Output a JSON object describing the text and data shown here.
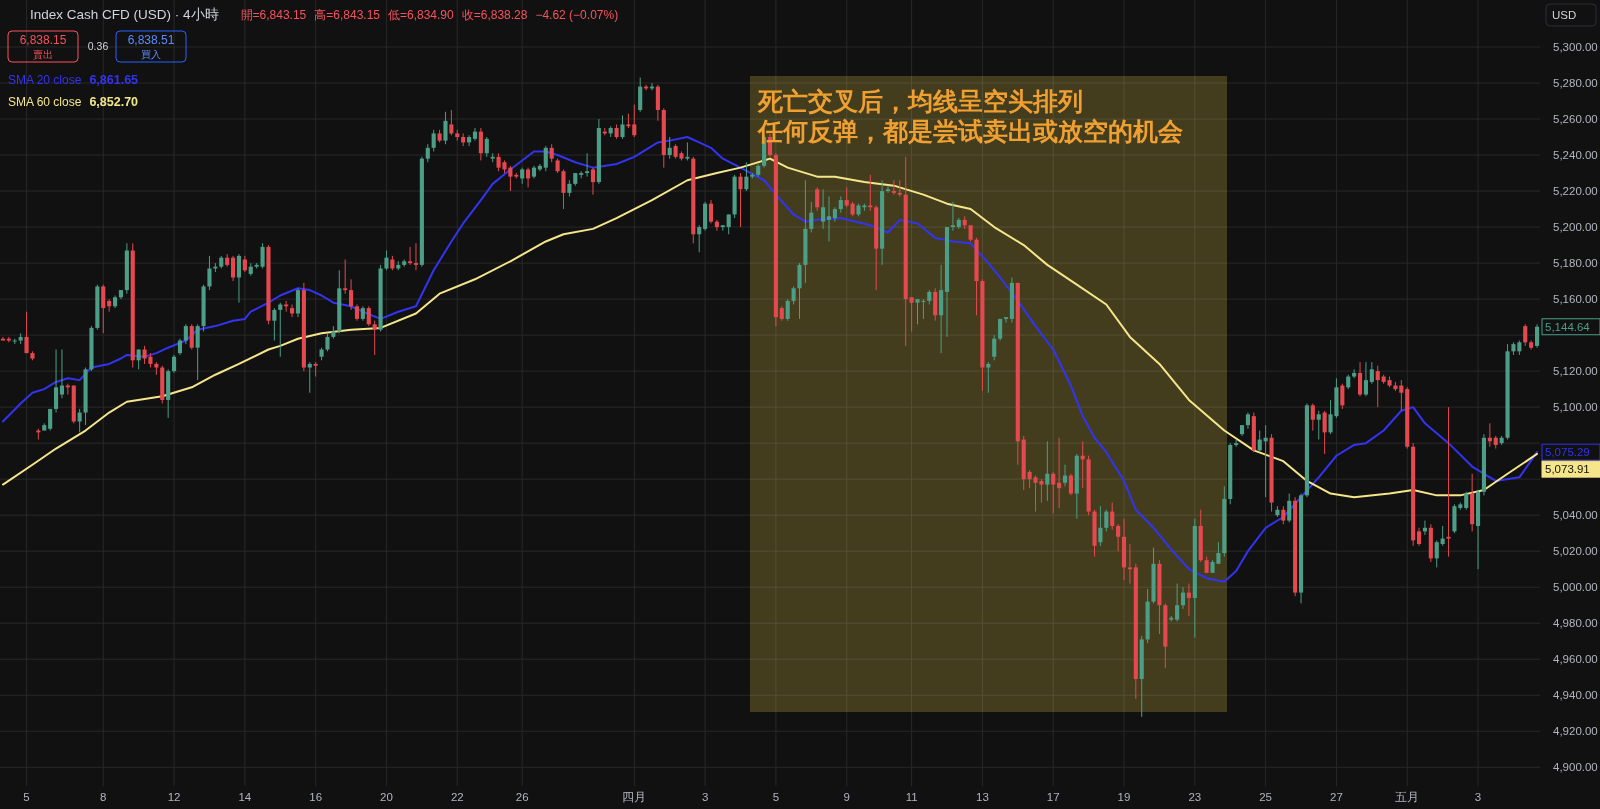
{
  "chart_data": {
    "type": "candlestick",
    "title": "Index Cash CFD (USD) · 4小時",
    "categories": [
      null,
      null,
      null,
      null,
      "5",
      null,
      null,
      null,
      null,
      null,
      null,
      null,
      null,
      null,
      null,
      null,
      null,
      "8",
      null,
      null,
      null,
      null,
      null,
      null,
      null,
      null,
      null,
      null,
      null,
      "12",
      null,
      null,
      null,
      null,
      null,
      null,
      null,
      null,
      null,
      null,
      null,
      "14",
      null,
      null,
      null,
      null,
      null,
      null,
      null,
      null,
      null,
      null,
      null,
      "16",
      null,
      null,
      null,
      null,
      null,
      null,
      null,
      null,
      null,
      null,
      null,
      "20",
      null,
      null,
      null,
      null,
      null,
      null,
      null,
      null,
      null,
      null,
      null,
      "22",
      null,
      null,
      null,
      null,
      null,
      null,
      null,
      null,
      null,
      null,
      "26",
      null,
      null,
      null,
      null,
      null,
      null,
      null,
      null,
      null,
      null,
      null,
      null,
      null,
      null,
      null,
      null,
      null,
      null,
      "四月",
      null,
      null,
      null,
      null,
      null,
      null,
      null,
      null,
      null,
      null,
      null,
      "3",
      null,
      null,
      null,
      null,
      null,
      null,
      null,
      null,
      null,
      null,
      null,
      "5",
      null,
      null,
      null,
      null,
      null,
      null,
      null,
      null,
      null,
      null,
      null,
      "9",
      null,
      null,
      null,
      null,
      null,
      null,
      null,
      null,
      null,
      null,
      "11",
      null,
      null,
      null,
      null,
      null,
      null,
      null,
      null,
      null,
      null,
      null,
      "13",
      null,
      null,
      null,
      null,
      null,
      null,
      null,
      null,
      null,
      null,
      null,
      "17",
      null,
      null,
      null,
      null,
      null,
      null,
      null,
      null,
      null,
      null,
      null,
      "19",
      null,
      null,
      null,
      null,
      null,
      null,
      null,
      null,
      null,
      null,
      null,
      "23",
      null,
      null,
      null,
      null,
      null,
      null,
      null,
      null,
      null,
      null,
      null,
      "25",
      null,
      null,
      null,
      null,
      null,
      null,
      null,
      null,
      null,
      null,
      null,
      "27",
      null,
      null,
      null,
      null,
      null,
      null,
      null,
      null,
      null,
      null,
      null,
      "五月",
      null,
      null,
      null,
      null,
      null,
      null,
      null,
      null,
      null,
      null,
      null,
      "3",
      null,
      null,
      null,
      null,
      null,
      null,
      null,
      null,
      null,
      null
    ],
    "ohlc": [
      [
        5138,
        5139,
        5137,
        5137
      ],
      [
        5138,
        5139,
        5136,
        5137
      ],
      [
        5137,
        5138,
        5135,
        5137
      ],
      [
        5137,
        5141,
        5135,
        5139
      ],
      [
        5139,
        5153,
        5130,
        5130
      ],
      [
        5130,
        5131,
        5126,
        5127
      ],
      [
        5087,
        5088,
        5082,
        5086
      ],
      [
        5087,
        5091,
        5087,
        5090
      ],
      [
        5088,
        5099,
        5087,
        5099
      ],
      [
        5099,
        5132,
        5097,
        5111
      ],
      [
        5107,
        5132,
        5105,
        5112
      ],
      [
        5112,
        5113,
        5107,
        5111
      ],
      [
        5112,
        5112,
        5091,
        5092
      ],
      [
        5092,
        5099,
        5086,
        5097
      ],
      [
        5097,
        5122,
        5090,
        5121
      ],
      [
        5121,
        5145,
        5120,
        5144
      ],
      [
        5144,
        5168,
        5143,
        5167
      ],
      [
        5167,
        5168,
        5141,
        5155
      ],
      [
        5159,
        5160,
        5153,
        5156
      ],
      [
        5156,
        5162,
        5155,
        5161
      ],
      [
        5161,
        5165,
        5160,
        5165
      ],
      [
        5165,
        5191,
        5163,
        5187
      ],
      [
        5187,
        5191,
        5122,
        5126
      ],
      [
        5126,
        5132,
        5121,
        5132
      ],
      [
        5132,
        5134,
        5124,
        5127
      ],
      [
        5128,
        5130,
        5122,
        5124
      ],
      [
        5124,
        5125,
        5118,
        5122
      ],
      [
        5122,
        5123,
        5102,
        5104
      ],
      [
        5104,
        5121,
        5094,
        5120
      ],
      [
        5120,
        5129,
        5119,
        5128
      ],
      [
        5130,
        5138,
        5129,
        5137
      ],
      [
        5137,
        5146,
        5135,
        5145
      ],
      [
        5145,
        5146,
        5132,
        5133
      ],
      [
        5133,
        5146,
        5115,
        5145
      ],
      [
        5145,
        5168,
        5142,
        5167
      ],
      [
        5167,
        5184,
        5165,
        5177
      ],
      [
        5177,
        5180,
        5175,
        5178
      ],
      [
        5178,
        5184,
        5177,
        5183
      ],
      [
        5183,
        5185,
        5178,
        5179
      ],
      [
        5183,
        5184,
        5170,
        5172
      ],
      [
        5172,
        5185,
        5158,
        5184
      ],
      [
        5182,
        5184,
        5175,
        5176
      ],
      [
        5174,
        5180,
        5173,
        5178
      ],
      [
        5178,
        5180,
        5177,
        5179
      ],
      [
        5178,
        5191,
        5177,
        5189
      ],
      [
        5189,
        5190,
        5146,
        5148
      ],
      [
        5148,
        5155,
        5137,
        5154
      ],
      [
        5154,
        5158,
        5128,
        5157
      ],
      [
        5157,
        5159,
        5153,
        5156
      ],
      [
        5155,
        5157,
        5150,
        5152
      ],
      [
        5152,
        5166,
        5150,
        5165
      ],
      [
        5165,
        5169,
        5120,
        5122
      ],
      [
        5122,
        5125,
        5108,
        5124
      ],
      [
        5124,
        5125,
        5117,
        5123
      ],
      [
        5128,
        5133,
        5126,
        5132
      ],
      [
        5132,
        5141,
        5131,
        5139
      ],
      [
        5139,
        5145,
        5138,
        5142
      ],
      [
        5142,
        5176,
        5141,
        5166
      ],
      [
        5166,
        5182,
        5163,
        5165
      ],
      [
        5165,
        5171,
        5154,
        5156
      ],
      [
        5156,
        5157,
        5148,
        5149
      ],
      [
        5149,
        5156,
        5148,
        5155
      ],
      [
        5155,
        5156,
        5145,
        5146
      ],
      [
        5146,
        5148,
        5129,
        5143
      ],
      [
        5143,
        5179,
        5142,
        5177
      ],
      [
        5177,
        5187,
        5176,
        5183
      ],
      [
        5182,
        5184,
        5176,
        5177
      ],
      [
        5177,
        5181,
        5176,
        5179
      ],
      [
        5179,
        5182,
        5178,
        5181
      ],
      [
        5181,
        5189,
        5179,
        5180
      ],
      [
        5180,
        5191,
        5176,
        5179
      ],
      [
        5179,
        5239,
        5178,
        5238
      ],
      [
        5238,
        5246,
        5236,
        5244
      ],
      [
        5244,
        5254,
        5242,
        5252
      ],
      [
        5252,
        5254,
        5247,
        5248
      ],
      [
        5248,
        5264,
        5246,
        5259
      ],
      [
        5257,
        5265,
        5251,
        5252
      ],
      [
        5252,
        5254,
        5248,
        5250
      ],
      [
        5250,
        5252,
        5245,
        5247
      ],
      [
        5247,
        5251,
        5245,
        5250
      ],
      [
        5249,
        5255,
        5248,
        5253
      ],
      [
        5253,
        5255,
        5237,
        5241
      ],
      [
        5241,
        5250,
        5239,
        5249
      ],
      [
        5238,
        5241,
        5236,
        5239
      ],
      [
        5239,
        5241,
        5231,
        5233
      ],
      [
        5236,
        5237,
        5230,
        5232
      ],
      [
        5233,
        5234,
        5220,
        5228
      ],
      [
        5229,
        5230,
        5227,
        5228
      ],
      [
        5227,
        5233,
        5224,
        5232
      ],
      [
        5232,
        5233,
        5222,
        5227
      ],
      [
        5228,
        5234,
        5227,
        5233
      ],
      [
        5232,
        5235,
        5231,
        5234
      ],
      [
        5233,
        5245,
        5231,
        5244
      ],
      [
        5244,
        5246,
        5236,
        5238
      ],
      [
        5237,
        5238,
        5230,
        5231
      ],
      [
        5231,
        5232,
        5210,
        5219
      ],
      [
        5219,
        5226,
        5217,
        5224
      ],
      [
        5224,
        5230,
        5223,
        5230
      ],
      [
        5229,
        5231,
        5227,
        5230
      ],
      [
        5230,
        5241,
        5228,
        5231
      ],
      [
        5232,
        5233,
        5218,
        5225
      ],
      [
        5225,
        5260,
        5224,
        5255
      ],
      [
        5253,
        5255,
        5251,
        5252
      ],
      [
        5252,
        5256,
        5250,
        5255
      ],
      [
        5255,
        5257,
        5249,
        5250
      ],
      [
        5250,
        5262,
        5249,
        5257
      ],
      [
        5257,
        5263,
        5255,
        5256
      ],
      [
        5257,
        5268,
        5250,
        5251
      ],
      [
        5265,
        5283,
        5264,
        5278
      ],
      [
        5278,
        5279,
        5276,
        5277
      ],
      [
        5277,
        5280,
        5276,
        5278
      ],
      [
        5278,
        5279,
        5259,
        5265
      ],
      [
        5265,
        5266,
        5233,
        5240
      ],
      [
        5240,
        5250,
        5238,
        5244
      ],
      [
        5245,
        5246,
        5238,
        5239
      ],
      [
        5241,
        5242,
        5237,
        5238
      ],
      [
        5238,
        5247,
        5237,
        5239
      ],
      [
        5238,
        5239,
        5191,
        5196
      ],
      [
        5196,
        5201,
        5186,
        5200
      ],
      [
        5199,
        5214,
        5198,
        5213
      ],
      [
        5213,
        5215,
        5202,
        5203
      ],
      [
        5203,
        5204,
        5198,
        5200
      ],
      [
        5200,
        5201,
        5198,
        5201
      ],
      [
        5200,
        5207,
        5196,
        5207
      ],
      [
        5207,
        5229,
        5205,
        5228
      ],
      [
        5228,
        5230,
        5200,
        5221
      ],
      [
        5221,
        5236,
        5220,
        5228
      ],
      [
        5228,
        5230,
        5227,
        5229
      ],
      [
        5229,
        5235,
        5228,
        5234
      ],
      [
        5234,
        5251,
        5233,
        5250
      ],
      [
        5250,
        5252,
        5239,
        5240
      ],
      [
        5240,
        5241,
        5145,
        5150
      ],
      [
        5155,
        5156,
        5148,
        5149
      ],
      [
        5149,
        5160,
        5148,
        5159
      ],
      [
        5159,
        5167,
        5157,
        5166
      ],
      [
        5166,
        5180,
        5149,
        5179
      ],
      [
        5179,
        5226,
        5169,
        5199
      ],
      [
        5199,
        5214,
        5197,
        5208
      ],
      [
        5221,
        5222,
        5209,
        5211
      ],
      [
        5203,
        5221,
        5199,
        5211
      ],
      [
        5204,
        5217,
        5192,
        5206
      ],
      [
        5205,
        5211,
        5203,
        5210
      ],
      [
        5210,
        5217,
        5208,
        5215
      ],
      [
        5215,
        5222,
        5211,
        5212
      ],
      [
        5213,
        5214,
        5206,
        5207
      ],
      [
        5207,
        5213,
        5206,
        5212
      ],
      [
        5211,
        5213,
        5209,
        5212
      ],
      [
        5212,
        5229,
        5209,
        5211
      ],
      [
        5211,
        5212,
        5165,
        5188
      ],
      [
        5188,
        5226,
        5179,
        5220
      ],
      [
        5220,
        5223,
        5219,
        5221
      ],
      [
        5220,
        5226,
        5218,
        5219
      ],
      [
        5219,
        5226,
        5217,
        5218
      ],
      [
        5218,
        5239,
        5134,
        5160
      ],
      [
        5161,
        5161,
        5142,
        5158
      ],
      [
        5158,
        5160,
        5146,
        5160
      ],
      [
        5159,
        5160,
        5149,
        5159
      ],
      [
        5159,
        5165,
        5157,
        5164
      ],
      [
        5164,
        5166,
        5148,
        5151
      ],
      [
        5151,
        5179,
        5130,
        5165
      ],
      [
        5164,
        5200,
        5139,
        5200
      ],
      [
        5200,
        5214,
        5198,
        5201
      ],
      [
        5200,
        5205,
        5199,
        5204
      ],
      [
        5204,
        5206,
        5199,
        5201
      ],
      [
        5201,
        5201,
        5192,
        5193
      ],
      [
        5193,
        5194,
        5151,
        5170
      ],
      [
        5170,
        5171,
        5109,
        5122
      ],
      [
        5122,
        5125,
        5108,
        5124
      ],
      [
        5128,
        5140,
        5126,
        5138
      ],
      [
        5138,
        5149,
        5137,
        5149
      ],
      [
        5149,
        5150,
        5147,
        5150
      ],
      [
        5149,
        5172,
        5147,
        5169
      ],
      [
        5169,
        5169,
        5068,
        5081
      ],
      [
        5082,
        5084,
        5054,
        5060
      ],
      [
        5064,
        5065,
        5055,
        5060
      ],
      [
        5061,
        5062,
        5042,
        5058
      ],
      [
        5059,
        5060,
        5047,
        5057
      ],
      [
        5057,
        5081,
        5048,
        5063
      ],
      [
        5063,
        5064,
        5041,
        5057
      ],
      [
        5058,
        5083,
        5044,
        5055
      ],
      [
        5058,
        5068,
        5056,
        5062
      ],
      [
        5062,
        5063,
        5051,
        5052
      ],
      [
        5052,
        5074,
        5038,
        5073
      ],
      [
        5073,
        5081,
        5055,
        5071
      ],
      [
        5071,
        5073,
        5040,
        5042
      ],
      [
        5042,
        5043,
        5017,
        5023
      ],
      [
        5025,
        5045,
        5023,
        5033
      ],
      [
        5033,
        5043,
        5031,
        5042
      ],
      [
        5042,
        5047,
        5032,
        5034
      ],
      [
        5034,
        5035,
        5020,
        5028
      ],
      [
        5028,
        5038,
        5004,
        5011
      ],
      [
        5011,
        5024,
        5002,
        5010
      ],
      [
        5011,
        5013,
        4938,
        4949
      ],
      [
        4949,
        4973,
        4928,
        4971
      ],
      [
        4971,
        4999,
        4969,
        4992
      ],
      [
        4992,
        5022,
        4991,
        5013
      ],
      [
        5013,
        5015,
        4974,
        4990
      ],
      [
        4990,
        4991,
        4955,
        4967
      ],
      [
        4982,
        4984,
        4981,
        4983
      ],
      [
        4982,
        5002,
        4981,
        4990
      ],
      [
        4990,
        5000,
        4988,
        4997
      ],
      [
        4997,
        5002,
        4984,
        4994
      ],
      [
        4994,
        5038,
        4972,
        5034
      ],
      [
        5034,
        5043,
        5014,
        5015
      ],
      [
        5015,
        5017,
        5008,
        5008
      ],
      [
        5008,
        5015,
        5008,
        5014
      ],
      [
        5013,
        5025,
        5013,
        5019
      ],
      [
        5019,
        5056,
        5017,
        5049
      ],
      [
        5049,
        5080,
        5046,
        5079
      ],
      [
        5079,
        5082,
        5078,
        5080
      ],
      [
        5085,
        5090,
        5084,
        5090
      ],
      [
        5090,
        5097,
        5088,
        5096
      ],
      [
        5095,
        5097,
        5075,
        5076
      ],
      [
        5076,
        5087,
        5075,
        5082
      ],
      [
        5081,
        5090,
        5050,
        5083
      ],
      [
        5083,
        5085,
        5042,
        5047
      ],
      [
        5040,
        5045,
        5039,
        5043
      ],
      [
        5043,
        5045,
        5035,
        5037
      ],
      [
        5037,
        5052,
        5036,
        5048
      ],
      [
        5048,
        5050,
        4995,
        4997
      ],
      [
        4997,
        5052,
        4991,
        5051
      ],
      [
        5051,
        5102,
        5050,
        5101
      ],
      [
        5101,
        5102,
        5087,
        5093
      ],
      [
        5093,
        5098,
        5082,
        5096
      ],
      [
        5097,
        5098,
        5074,
        5086
      ],
      [
        5086,
        5104,
        5085,
        5096
      ],
      [
        5095,
        5116,
        5094,
        5111
      ],
      [
        5112,
        5113,
        5099,
        5101
      ],
      [
        5111,
        5118,
        5110,
        5117
      ],
      [
        5117,
        5121,
        5116,
        5119
      ],
      [
        5119,
        5125,
        5106,
        5107
      ],
      [
        5107,
        5125,
        5106,
        5115
      ],
      [
        5114,
        5125,
        5113,
        5121
      ],
      [
        5120,
        5123,
        5100,
        5115
      ],
      [
        5117,
        5118,
        5113,
        5114
      ],
      [
        5115,
        5117,
        5111,
        5112
      ],
      [
        5112,
        5114,
        5109,
        5110
      ],
      [
        5112,
        5115,
        5098,
        5108
      ],
      [
        5110,
        5111,
        5077,
        5078
      ],
      [
        5078,
        5080,
        5023,
        5026
      ],
      [
        5031,
        5033,
        5023,
        5024
      ],
      [
        5031,
        5037,
        5029,
        5033
      ],
      [
        5033,
        5035,
        5014,
        5016
      ],
      [
        5016,
        5026,
        5011,
        5025
      ],
      [
        5024,
        5034,
        5023,
        5027
      ],
      [
        5028,
        5100,
        5017,
        5027
      ],
      [
        5031,
        5046,
        5030,
        5045
      ],
      [
        5044,
        5047,
        5043,
        5046
      ],
      [
        5044,
        5053,
        5043,
        5052
      ],
      [
        5052,
        5063,
        5031,
        5035
      ],
      [
        5034,
        5054,
        5010,
        5053
      ],
      [
        5053,
        5085,
        5051,
        5083
      ],
      [
        5083,
        5091,
        5078,
        5081
      ],
      [
        5083,
        5084,
        5077,
        5079
      ],
      [
        5080,
        5084,
        5079,
        5083
      ],
      [
        5083,
        5135,
        5082,
        5131
      ],
      [
        5131,
        5136,
        5129,
        5135
      ],
      [
        5131,
        5137,
        5129,
        5136
      ],
      [
        5145,
        5146,
        5134,
        5136
      ],
      [
        5136,
        5137,
        5132,
        5133
      ],
      [
        5134,
        5146,
        5133,
        5144.64
      ]
    ],
    "colors": [
      "#e5484f",
      "#e5484f",
      "#4c9e86",
      "#4c9e86",
      "#e5484f",
      "#e5484f",
      "#e5484f",
      "#4c9e86",
      "#4c9e86",
      "#4c9e86",
      "#4c9e86",
      "#e5484f",
      "#e5484f",
      "#4c9e86",
      "#4c9e86",
      "#4c9e86",
      "#4c9e86",
      "#e5484f",
      "#e5484f",
      "#4c9e86",
      "#4c9e86",
      "#4c9e86",
      "#e5484f",
      "#4c9e86",
      "#e5484f",
      "#e5484f",
      "#e5484f",
      "#e5484f",
      "#4c9e86",
      "#4c9e86",
      "#4c9e86",
      "#4c9e86",
      "#e5484f",
      "#4c9e86",
      "#4c9e86",
      "#4c9e86",
      "#4c9e86",
      "#4c9e86",
      "#e5484f",
      "#e5484f",
      "#4c9e86",
      "#e5484f",
      "#4c9e86",
      "#4c9e86",
      "#4c9e86",
      "#e5484f",
      "#4c9e86",
      "#4c9e86",
      "#e5484f",
      "#e5484f",
      "#4c9e86",
      "#e5484f",
      "#4c9e86",
      "#e5484f",
      "#4c9e86",
      "#4c9e86",
      "#4c9e86",
      "#4c9e86",
      "#e5484f",
      "#e5484f",
      "#e5484f",
      "#4c9e86",
      "#e5484f",
      "#e5484f",
      "#4c9e86",
      "#4c9e86",
      "#e5484f",
      "#4c9e86",
      "#4c9e86",
      "#e5484f",
      "#e5484f",
      "#4c9e86",
      "#4c9e86",
      "#4c9e86",
      "#e5484f",
      "#4c9e86",
      "#e5484f",
      "#e5484f",
      "#e5484f",
      "#4c9e86",
      "#4c9e86",
      "#e5484f",
      "#4c9e86",
      "#4c9e86",
      "#e5484f",
      "#e5484f",
      "#e5484f",
      "#e5484f",
      "#4c9e86",
      "#e5484f",
      "#4c9e86",
      "#4c9e86",
      "#4c9e86",
      "#e5484f",
      "#e5484f",
      "#e5484f",
      "#4c9e86",
      "#4c9e86",
      "#4c9e86",
      "#4c9e86",
      "#e5484f",
      "#4c9e86",
      "#e5484f",
      "#4c9e86",
      "#e5484f",
      "#4c9e86",
      "#e5484f",
      "#e5484f",
      "#4c9e86",
      "#e5484f",
      "#4c9e86",
      "#e5484f",
      "#e5484f",
      "#4c9e86",
      "#e5484f",
      "#e5484f",
      "#4c9e86",
      "#e5484f",
      "#4c9e86",
      "#4c9e86",
      "#e5484f",
      "#e5484f",
      "#4c9e86",
      "#4c9e86",
      "#4c9e86",
      "#e5484f",
      "#4c9e86",
      "#4c9e86",
      "#4c9e86",
      "#4c9e86",
      "#e5484f",
      "#e5484f",
      "#e5484f",
      "#4c9e86",
      "#4c9e86",
      "#4c9e86",
      "#4c9e86",
      "#4c9e86",
      "#e5484f",
      "#4c9e86",
      "#4c9e86",
      "#4c9e86",
      "#4c9e86",
      "#e5484f",
      "#e5484f",
      "#4c9e86",
      "#4c9e86",
      "#e5484f",
      "#e5484f",
      "#4c9e86",
      "#4c9e86",
      "#e5484f",
      "#e5484f",
      "#e5484f",
      "#e5484f",
      "#4c9e86",
      "#4c9e86",
      "#4c9e86",
      "#e5484f",
      "#4c9e86",
      "#4c9e86",
      "#4c9e86",
      "#4c9e86",
      "#e5484f",
      "#e5484f",
      "#e5484f",
      "#e5484f",
      "#4c9e86",
      "#4c9e86",
      "#4c9e86",
      "#4c9e86",
      "#4c9e86",
      "#e5484f",
      "#e5484f",
      "#e5484f",
      "#e5484f",
      "#e5484f",
      "#4c9e86",
      "#e5484f",
      "#e5484f",
      "#4c9e86",
      "#e5484f",
      "#4c9e86",
      "#e5484f",
      "#e5484f",
      "#e5484f",
      "#4c9e86",
      "#4c9e86",
      "#e5484f",
      "#e5484f",
      "#e5484f",
      "#e5484f",
      "#e5484f",
      "#4c9e86",
      "#4c9e86",
      "#4c9e86",
      "#e5484f",
      "#e5484f",
      "#4c9e86",
      "#4c9e86",
      "#4c9e86",
      "#e5484f",
      "#4c9e86",
      "#e5484f",
      "#e5484f",
      "#4c9e86",
      "#4c9e86",
      "#4c9e86",
      "#4c9e86",
      "#4c9e86",
      "#4c9e86",
      "#4c9e86",
      "#e5484f",
      "#4c9e86",
      "#4c9e86",
      "#e5484f",
      "#4c9e86",
      "#e5484f",
      "#4c9e86",
      "#e5484f",
      "#4c9e86",
      "#4c9e86",
      "#e5484f",
      "#4c9e86",
      "#e5484f",
      "#4c9e86",
      "#4c9e86",
      "#e5484f",
      "#4c9e86",
      "#4c9e86",
      "#e5484f",
      "#4c9e86",
      "#4c9e86",
      "#e5484f",
      "#e5484f",
      "#e5484f",
      "#e5484f",
      "#e5484f",
      "#e5484f",
      "#e5484f",
      "#e5484f",
      "#4c9e86",
      "#e5484f",
      "#4c9e86",
      "#4c9e86",
      "#e5484f",
      "#4c9e86",
      "#4c9e86",
      "#4c9e86",
      "#e5484f",
      "#4c9e86",
      "#4c9e86",
      "#e5484f",
      "#e5484f",
      "#4c9e86",
      "#4c9e86",
      "#4c9e86",
      "#4c9e86",
      "#e5484f",
      "#e5484f",
      "#4c9e86"
    ],
    "series": [
      {
        "name": "SMA 20 close",
        "type": "line",
        "color": "#3333f2",
        "values": [
          5092,
          null,
          null,
          5102,
          null,
          5108,
          null,
          5110,
          null,
          5114,
          null,
          5116,
          null,
          5115,
          null,
          5122,
          null,
          null,
          5124,
          null,
          5127,
          5129,
          null,
          null,
          5128,
          null,
          5130,
          null,
          5133,
          null,
          null,
          5137,
          null,
          5143,
          null,
          null,
          5145,
          null,
          null,
          5148,
          null,
          5149,
          5153,
          null,
          null,
          5158,
          null,
          5162,
          null,
          null,
          5166,
          null,
          5165,
          null,
          5162,
          null,
          5158,
          null,
          null,
          5156,
          null,
          5153,
          null,
          null,
          5149,
          null,
          null,
          5153,
          null,
          null,
          5156,
          null,
          null,
          5176,
          null,
          null,
          5192,
          null,
          5202,
          null,
          null,
          5215,
          null,
          5224,
          null,
          null,
          5232,
          null,
          5237,
          null,
          5242,
          null,
          5242,
          null,
          5240,
          null,
          null,
          5236,
          null,
          null,
          5233,
          null,
          null,
          null,
          5235,
          null,
          null,
          5239,
          null,
          null,
          null,
          5247,
          null,
          5248,
          null,
          null,
          5250,
          null,
          5247,
          null,
          5244,
          null,
          5238,
          null,
          null,
          5233,
          null,
          null,
          null,
          5226,
          null,
          5218,
          null,
          null,
          5207,
          null,
          5203,
          null,
          5204,
          null,
          null,
          null,
          5205,
          null,
          null,
          null,
          null,
          5201,
          null,
          null,
          5197,
          null,
          5204,
          null,
          null,
          5202,
          null,
          null,
          5194,
          null,
          null,
          5192,
          null,
          null,
          5191,
          null,
          null,
          5180,
          null,
          5172,
          null,
          null,
          5159,
          null,
          null,
          5145,
          null,
          null,
          5132,
          null,
          null,
          5112,
          null,
          5095,
          null,
          5083,
          null,
          5075,
          null,
          null,
          5059,
          null,
          5043,
          null,
          null,
          5033,
          null,
          null,
          5021,
          null,
          null,
          5010,
          null,
          null,
          5005,
          null,
          null,
          5003,
          null,
          5009,
          null,
          5020,
          null,
          null,
          5033,
          null,
          null,
          5039,
          null,
          null,
          5050,
          null,
          null,
          5061,
          null,
          null,
          5073,
          null,
          null,
          5079,
          null,
          5080,
          null,
          null,
          5087,
          null,
          null,
          5098,
          null,
          5100,
          null,
          5091,
          null,
          null,
          null,
          5080,
          null,
          null,
          null,
          5067,
          null,
          null,
          null,
          5059,
          null,
          null,
          null,
          5061,
          null,
          null,
          5075
        ]
      },
      {
        "name": "SMA 60 close",
        "type": "line",
        "color": "#f5e68a",
        "values": [
          5057,
          null,
          null,
          null,
          null,
          5068,
          null,
          null,
          null,
          5077,
          null,
          null,
          null,
          null,
          5087,
          null,
          null,
          null,
          5097,
          null,
          null,
          5103,
          null,
          null,
          null,
          null,
          null,
          5106,
          null,
          null,
          null,
          null,
          5111,
          null,
          null,
          null,
          5118,
          null,
          null,
          null,
          5124,
          null,
          null,
          null,
          null,
          5132,
          null,
          5134,
          null,
          null,
          5138,
          null,
          null,
          null,
          5141,
          null,
          null,
          null,
          null,
          5143,
          null,
          null,
          null,
          null,
          5144,
          null,
          null,
          null,
          null,
          null,
          5152,
          null,
          null,
          null,
          5163,
          null,
          null,
          null,
          null,
          null,
          5171,
          null,
          null,
          null,
          null,
          null,
          5181,
          null,
          null,
          null,
          null,
          null,
          5192,
          null,
          null,
          5196,
          null,
          null,
          null,
          null,
          5199,
          null,
          null,
          null,
          5205,
          null,
          null,
          null,
          null,
          null,
          5215,
          null,
          null,
          null,
          null,
          null,
          5226,
          null,
          null,
          null,
          null,
          5230,
          null,
          null,
          null,
          5233,
          null,
          null,
          null,
          null,
          5238,
          null,
          null,
          5233,
          null,
          null,
          null,
          null,
          5228,
          null,
          null,
          5228,
          null,
          null,
          null,
          null,
          5225,
          null,
          null,
          null,
          null,
          5223,
          null,
          null,
          null,
          null,
          5218,
          null,
          null,
          null,
          5213,
          null,
          null,
          null,
          5210,
          null,
          null,
          null,
          5200,
          null,
          null,
          null,
          null,
          5190,
          null,
          null,
          null,
          5179,
          null,
          null,
          null,
          null,
          5168,
          null,
          null,
          null,
          null,
          5157,
          null,
          null,
          null,
          5139,
          null,
          null,
          null,
          null,
          5124,
          null,
          null,
          null,
          null,
          5104,
          null,
          null,
          null,
          null,
          null,
          5087,
          null,
          null,
          null,
          null,
          5076,
          null,
          null,
          null,
          null,
          5070,
          null,
          null,
          null,
          5059,
          null,
          null,
          null,
          5052,
          null,
          null,
          null,
          5050,
          null,
          null,
          null,
          null,
          null,
          5052,
          null,
          null,
          null,
          5054,
          null,
          null,
          null,
          5051,
          null,
          null,
          null,
          5051,
          null,
          null,
          null,
          5054,
          null,
          null,
          null,
          5063,
          null,
          null,
          null,
          null,
          5074
        ]
      }
    ],
    "ylim": [
      4889.6,
      5326.1
    ],
    "yticks": [
      {
        "value": 4900,
        "label": "4,900.00"
      },
      {
        "value": 4920,
        "label": "4,920.00"
      },
      {
        "value": 4940,
        "label": "4,940.00"
      },
      {
        "value": 4960,
        "label": "4,960.00"
      },
      {
        "value": 4980,
        "label": "4,980.00"
      },
      {
        "value": 5000,
        "label": "5,000.00"
      },
      {
        "value": 5020,
        "label": "5,020.00"
      },
      {
        "value": 5040,
        "label": "5,040.00"
      },
      {
        "value": 5060,
        "label": null
      },
      {
        "value": 5080,
        "label": null
      },
      {
        "value": 5100,
        "label": "5,100.00"
      },
      {
        "value": 5120,
        "label": "5,120.00"
      },
      {
        "value": 5140,
        "label": null
      },
      {
        "value": 5160,
        "label": "5,160.00"
      },
      {
        "value": 5180,
        "label": "5,180.00"
      },
      {
        "value": 5200,
        "label": "5,200.00"
      },
      {
        "value": 5220,
        "label": "5,220.00"
      },
      {
        "value": 5240,
        "label": "5,240.00"
      },
      {
        "value": 5260,
        "label": "5,260.00"
      },
      {
        "value": 5280,
        "label": "5,280.00"
      },
      {
        "value": 5300,
        "label": "5,300.00"
      }
    ],
    "annotations": [
      "開=6,843.15",
      "高=6,843.15",
      "低=6,834.90",
      "收=6,838.28",
      "−4.62 (−0.07%)",
      "6,838.15",
      "賣出",
      "0.36",
      "6,838.51",
      "買入",
      "6,861.65",
      "6,852.70",
      "USD",
      "5,144.64",
      "5,075.29",
      "5,073.91",
      "死亡交叉后，均线呈空头排列",
      "任何反弹，都是尝试卖出或放空的机会"
    ],
    "grid": true,
    "legend": "top left"
  }
}
